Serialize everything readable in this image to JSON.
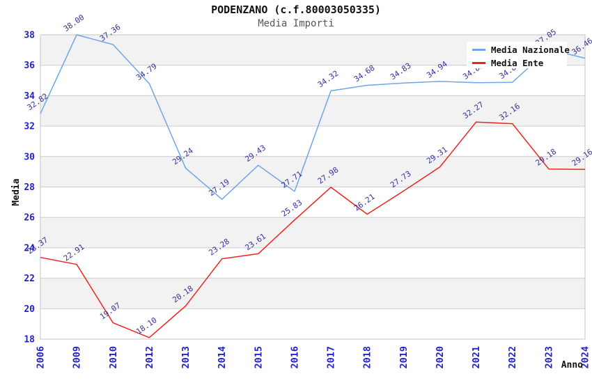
{
  "header": {
    "title": "PODENZANO (c.f.80003050335)",
    "subtitle": "Media Importi"
  },
  "chart_data": {
    "type": "line",
    "title": "PODENZANO (c.f.80003050335)",
    "subtitle": "Media Importi",
    "xlabel": "Anno",
    "ylabel": "Media",
    "categories": [
      "2006",
      "2009",
      "2010",
      "2012",
      "2013",
      "2014",
      "2015",
      "2016",
      "2017",
      "2018",
      "2019",
      "2020",
      "2021",
      "2022",
      "2023",
      "2024"
    ],
    "series": [
      {
        "name": "Media Nazionale",
        "color": "#6EA6E8",
        "values": [
          32.82,
          38.0,
          37.36,
          34.79,
          29.24,
          27.19,
          29.43,
          27.71,
          34.32,
          34.68,
          34.83,
          34.94,
          34.85,
          34.88,
          37.05,
          36.46
        ]
      },
      {
        "name": "Media Ente",
        "color": "#EE2222",
        "values": [
          23.37,
          22.91,
          19.07,
          18.1,
          20.18,
          23.28,
          23.61,
          25.83,
          27.98,
          26.21,
          27.73,
          29.31,
          32.27,
          32.16,
          29.18,
          29.16
        ]
      }
    ],
    "ylim": [
      18,
      38
    ],
    "yticks": [
      18,
      20,
      22,
      24,
      26,
      28,
      30,
      32,
      34,
      36,
      38
    ],
    "grid": "horizontal",
    "banding": true,
    "legend_position": "top-right",
    "legend": [
      "Media Nazionale",
      "Media Ente"
    ],
    "colors": {
      "tick_label": "#2222CC",
      "point_label": "#333399",
      "band": "#F2F2F2",
      "gridline": "#CCCCCC",
      "plot_border": "#C4C4C4",
      "axis_title": "#111111",
      "legend_bg": "#FFFFFF",
      "legend_text": "#111111"
    }
  }
}
